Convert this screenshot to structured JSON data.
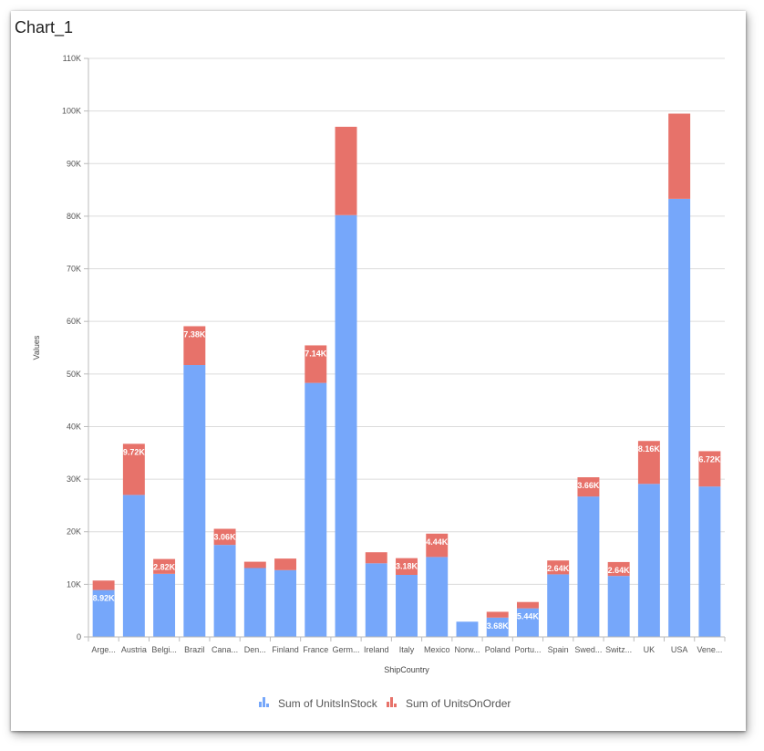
{
  "title": "Chart_1",
  "chart_data": {
    "type": "bar",
    "stacked": true,
    "title": "Chart_1",
    "xlabel": "ShipCountry",
    "ylabel": "Values",
    "ylim": [
      0,
      110000
    ],
    "yticks": [
      0,
      10000,
      20000,
      30000,
      40000,
      50000,
      60000,
      70000,
      80000,
      90000,
      100000,
      110000
    ],
    "ytick_labels": [
      "0",
      "10K",
      "20K",
      "30K",
      "40K",
      "50K",
      "60K",
      "70K",
      "80K",
      "90K",
      "100K",
      "110K"
    ],
    "grid": true,
    "legend_position": "bottom",
    "categories": [
      "Arge...",
      "Austria",
      "Belgi...",
      "Brazil",
      "Cana...",
      "Den...",
      "Finland",
      "France",
      "Germ...",
      "Ireland",
      "Italy",
      "Mexico",
      "Norw...",
      "Poland",
      "Portu...",
      "Spain",
      "Swed...",
      "Switz...",
      "UK",
      "USA",
      "Vene..."
    ],
    "series": [
      {
        "name": "Sum of UnitsInStock",
        "color": "#76a7fa",
        "values": [
          8920,
          27000,
          12000,
          51700,
          17500,
          13100,
          12700,
          48300,
          80200,
          14000,
          11800,
          15200,
          2900,
          3680,
          5440,
          11900,
          26700,
          11600,
          29100,
          83300,
          28600
        ],
        "labels": [
          "8.92K",
          "",
          "",
          "",
          "",
          "",
          "",
          "",
          "",
          "",
          "",
          "",
          "",
          "3.68K",
          "5.44K",
          "",
          "",
          "",
          "",
          "",
          ""
        ]
      },
      {
        "name": "Sum of UnitsOnOrder",
        "color": "#e7726a",
        "values": [
          1800,
          9720,
          2820,
          7380,
          3060,
          1200,
          2200,
          7140,
          16800,
          2100,
          3180,
          4440,
          0,
          1100,
          1200,
          2640,
          3660,
          2640,
          8160,
          16200,
          6720
        ],
        "labels": [
          "",
          "9.72K",
          "2.82K",
          "7.38K",
          "3.06K",
          "",
          "",
          "7.14K",
          "",
          "",
          "3.18K",
          "4.44K",
          "",
          "",
          "",
          "2.64K",
          "3.66K",
          "2.64K",
          "8.16K",
          "",
          "6.72K"
        ]
      }
    ]
  }
}
